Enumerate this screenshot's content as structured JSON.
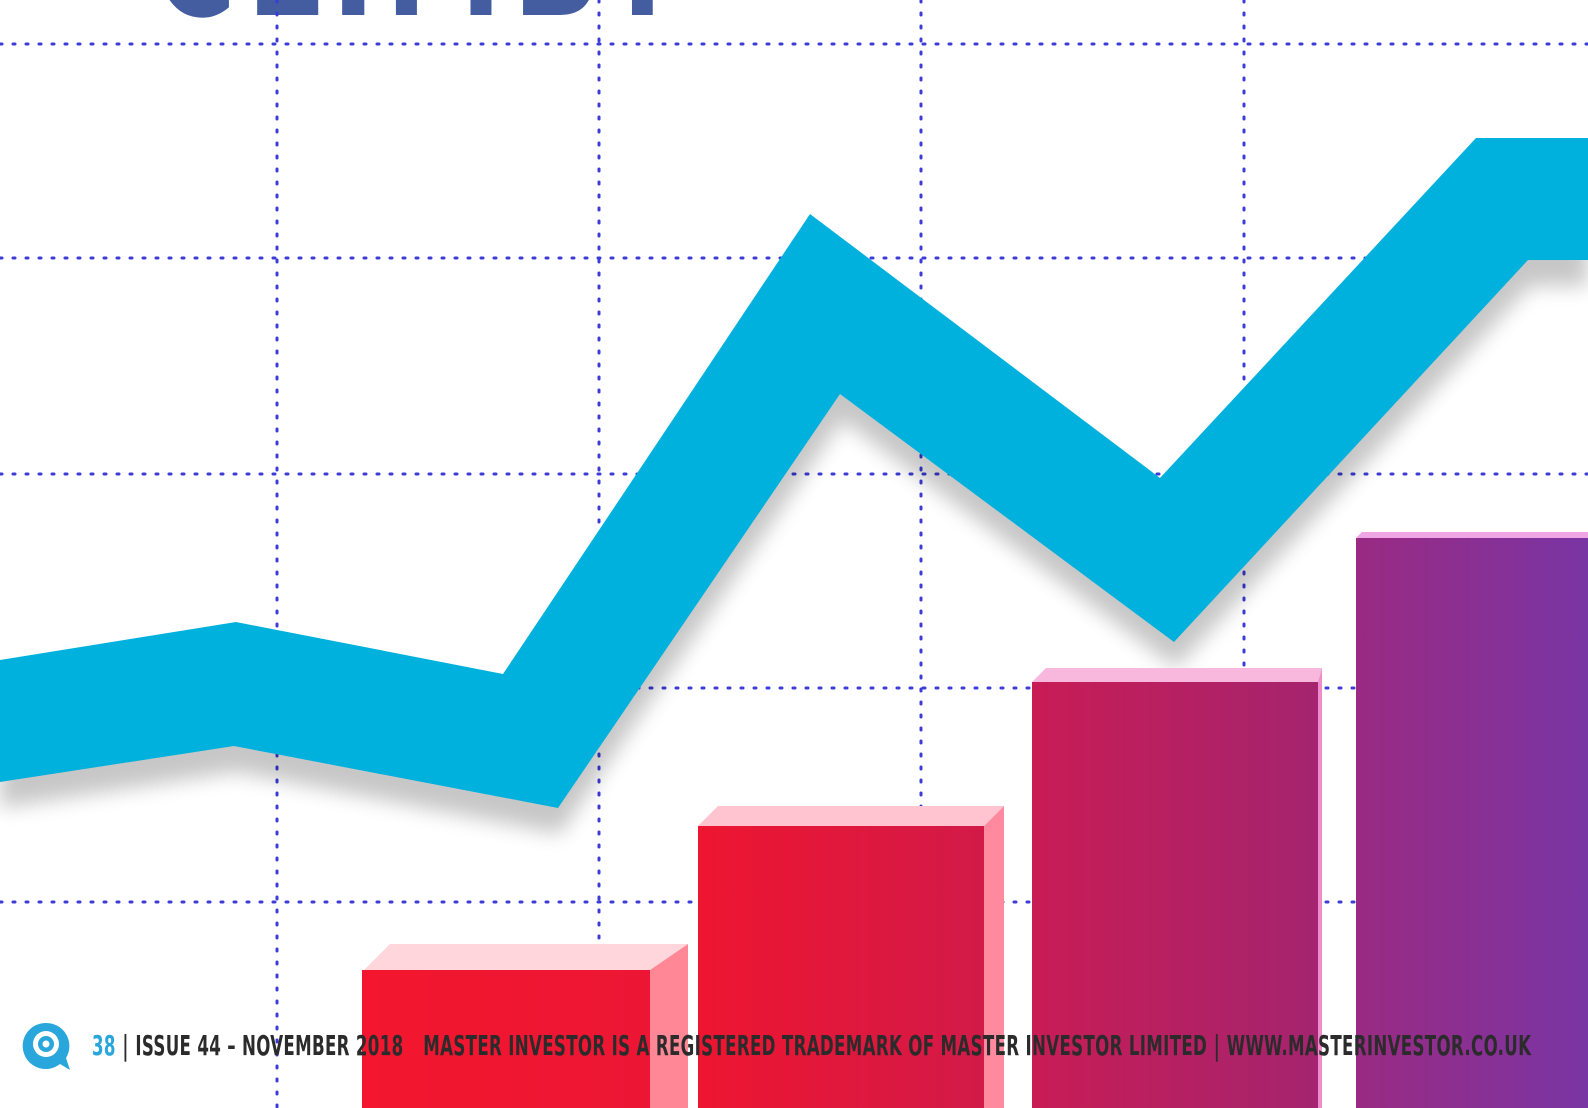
{
  "heading": {
    "text": "CLIMB?",
    "color": "#435da0"
  },
  "footer": {
    "page_number": "38",
    "separator": "|",
    "issue": "Issue 44 – November 2018",
    "trademark": "Master Investor is a registered trademark of Master Investor Limited",
    "separator2": "|",
    "website": "www.masterinvestor.co.uk",
    "page_number_color": "#29a7dc",
    "logo_icon": "speech-bubble-q-icon",
    "logo_color": "#29a7dc"
  },
  "illustration": {
    "line_color": "#00b1de",
    "grid_color": "#3b3bd9",
    "bar_colors": [
      "#f0152f",
      "#e8173a",
      "#c21c5a",
      "#8a2f9a"
    ]
  }
}
